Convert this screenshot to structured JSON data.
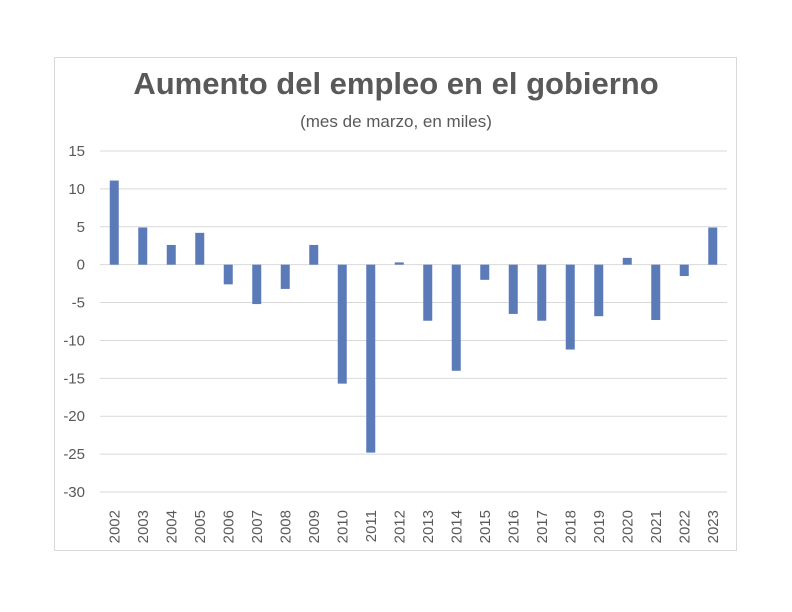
{
  "chart_data": {
    "type": "bar",
    "title": "Aumento del empleo en el gobierno",
    "subtitle": "(mes de marzo, en miles)",
    "xlabel": "",
    "ylabel": "",
    "categories": [
      "2002",
      "2003",
      "2004",
      "2005",
      "2006",
      "2007",
      "2008",
      "2009",
      "2010",
      "2011",
      "2012",
      "2013",
      "2014",
      "2015",
      "2016",
      "2017",
      "2018",
      "2019",
      "2020",
      "2021",
      "2022",
      "2023"
    ],
    "values": [
      11.1,
      4.9,
      2.6,
      4.2,
      -2.6,
      -5.2,
      -3.2,
      2.6,
      -15.7,
      -24.8,
      0.3,
      -7.4,
      -14.0,
      -2.0,
      -6.5,
      -7.4,
      -11.2,
      -6.8,
      0.9,
      -7.3,
      -1.5,
      4.9
    ],
    "ylim": [
      -30,
      15
    ],
    "yticks": [
      15,
      10,
      5,
      0,
      -5,
      -10,
      -15,
      -20,
      -25,
      -30
    ],
    "bar_color": "#5a7ab8",
    "grid": true,
    "legend": "none"
  }
}
